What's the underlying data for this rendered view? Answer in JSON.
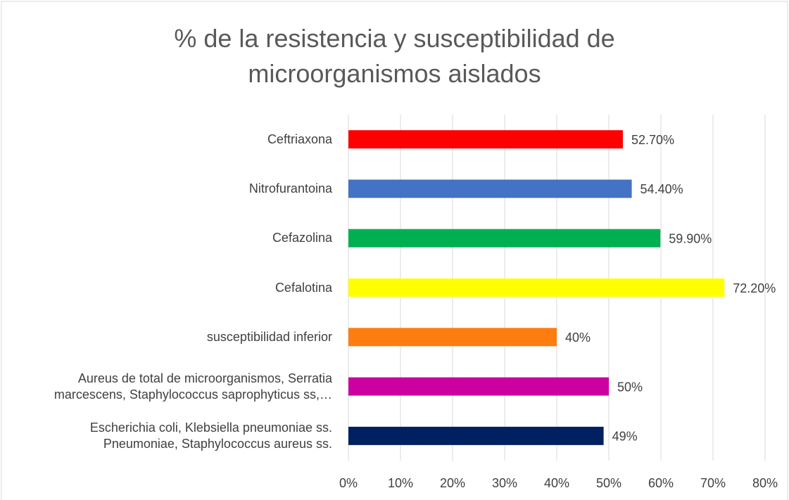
{
  "chart_data": {
    "type": "bar",
    "orientation": "horizontal",
    "title": "% de la resistencia y susceptibilidad de\nmicroorganismos aislados",
    "categories": [
      "Ceftriaxona",
      "Nitrofurantoina",
      "Cefazolina",
      "Cefalotina",
      "susceptibilidad inferior",
      "Aureus de total de microorganismos, Serratia\nmarcescens, Staphylococcus saprophyticus ss,…",
      "Escherichia coli, Klebsiella pneumoniae ss.\nPneumoniae, Staphylococcus aureus ss."
    ],
    "values": [
      52.7,
      54.4,
      59.9,
      72.2,
      40,
      50,
      49
    ],
    "value_labels": [
      "52.70%",
      "54.40%",
      "59.90%",
      "72.20%",
      "40%",
      "50%",
      "49%"
    ],
    "colors": [
      "#ff0000",
      "#4472c4",
      "#00b050",
      "#ffff00",
      "#ff7c10",
      "#cc00a0",
      "#002060"
    ],
    "xlim": [
      0,
      80
    ],
    "xticks": [
      {
        "value": 0,
        "label": "0%"
      },
      {
        "value": 10,
        "label": "10%"
      },
      {
        "value": 20,
        "label": "20%"
      },
      {
        "value": 30,
        "label": "30%"
      },
      {
        "value": 40,
        "label": "40%"
      },
      {
        "value": 50,
        "label": "50%"
      },
      {
        "value": 60,
        "label": "60%"
      },
      {
        "value": 70,
        "label": "70%"
      },
      {
        "value": 80,
        "label": "80%"
      }
    ],
    "grid": true
  }
}
